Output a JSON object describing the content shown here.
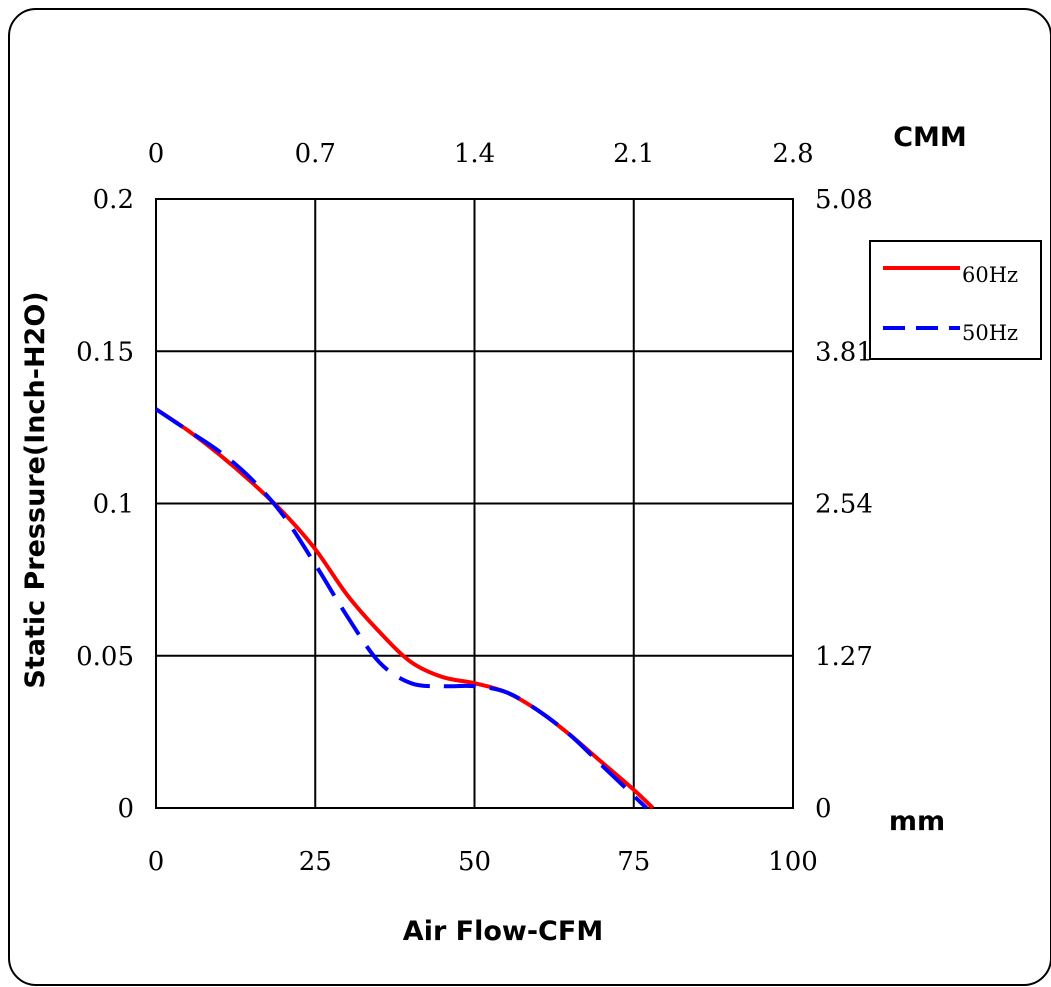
{
  "chart_data": {
    "type": "line",
    "xlabel": "Air Flow-CFM",
    "ylabel": "Static Pressure(Inch-H2O)",
    "x_bottom": {
      "ticks": [
        "0",
        "25",
        "50",
        "75",
        "100"
      ],
      "range": [
        0,
        100
      ]
    },
    "x_top": {
      "label": "CMM",
      "ticks": [
        "0",
        "0.7",
        "1.4",
        "2.1",
        "2.8"
      ]
    },
    "y_left": {
      "ticks": [
        "0",
        "0.05",
        "0.1",
        "0.15",
        "0.2"
      ],
      "range": [
        0,
        0.2
      ]
    },
    "y_right": {
      "label": "mm",
      "ticks": [
        "0",
        "1.27",
        "2.54",
        "3.81",
        "5.08"
      ]
    },
    "grid": true,
    "legend": {
      "position": "right"
    },
    "series": [
      {
        "name": "60Hz",
        "color": "#ff0000",
        "dash": "solid",
        "points": [
          [
            0,
            0.131
          ],
          [
            5,
            0.124
          ],
          [
            10,
            0.116
          ],
          [
            15,
            0.107
          ],
          [
            20,
            0.097
          ],
          [
            25,
            0.085
          ],
          [
            30,
            0.07
          ],
          [
            35,
            0.058
          ],
          [
            40,
            0.048
          ],
          [
            45,
            0.043
          ],
          [
            50,
            0.041
          ],
          [
            55,
            0.038
          ],
          [
            60,
            0.032
          ],
          [
            65,
            0.024
          ],
          [
            70,
            0.015
          ],
          [
            75,
            0.006
          ],
          [
            78,
            0.0
          ]
        ]
      },
      {
        "name": "50Hz",
        "color": "#0000ff",
        "dash": "dashed",
        "points": [
          [
            0,
            0.131
          ],
          [
            5,
            0.124
          ],
          [
            10,
            0.117
          ],
          [
            15,
            0.108
          ],
          [
            20,
            0.096
          ],
          [
            25,
            0.08
          ],
          [
            30,
            0.063
          ],
          [
            35,
            0.048
          ],
          [
            40,
            0.041
          ],
          [
            45,
            0.04
          ],
          [
            50,
            0.04
          ],
          [
            55,
            0.038
          ],
          [
            60,
            0.032
          ],
          [
            65,
            0.024
          ],
          [
            70,
            0.014
          ],
          [
            75,
            0.004
          ],
          [
            77,
            0.0
          ]
        ]
      }
    ]
  }
}
